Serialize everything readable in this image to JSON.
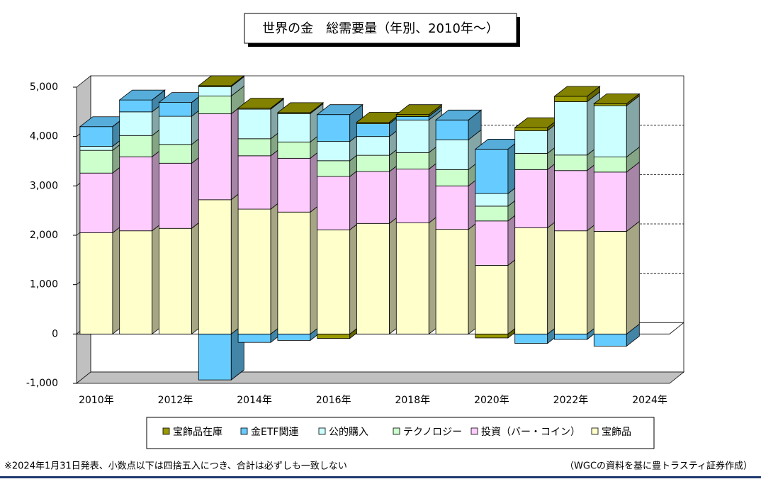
{
  "chart_data": {
    "type": "bar3d-stacked",
    "title": "世界の金　総需要量（年別、2010年～）",
    "categories": [
      "2010年",
      null,
      "2012年",
      null,
      "2014年",
      null,
      "2016年",
      null,
      "2018年",
      null,
      "2020年",
      null,
      "2022年",
      null,
      "2024年"
    ],
    "series": [
      {
        "name": "宝飾品",
        "color": "#ffffcc",
        "values": [
          2050,
          2090,
          2140,
          2720,
          2530,
          2470,
          2110,
          2240,
          2250,
          2120,
          1390,
          2150,
          2090,
          2080,
          null
        ]
      },
      {
        "name": "投資（バー・コイン）",
        "color": "#ffccff",
        "values": [
          1210,
          1500,
          1320,
          1740,
          1080,
          1090,
          1080,
          1050,
          1090,
          880,
          900,
          1180,
          1220,
          1200,
          null
        ]
      },
      {
        "name": "テクノロジー",
        "color": "#ccffcc",
        "values": [
          460,
          430,
          380,
          360,
          345,
          330,
          320,
          330,
          335,
          330,
          300,
          330,
          315,
          305,
          null
        ]
      },
      {
        "name": "公的購入",
        "color": "#ccffff",
        "values": [
          80,
          480,
          570,
          190,
          600,
          575,
          390,
          380,
          660,
          605,
          255,
          460,
          1080,
          1040,
          null
        ]
      },
      {
        "name": "金ETF関連",
        "color": "#66ccff",
        "values": [
          400,
          240,
          280,
          -930,
          -170,
          -130,
          545,
          260,
          70,
          400,
          900,
          -190,
          -110,
          -245,
          null
        ]
      },
      {
        "name": "宝飾品在庫",
        "color": "#999900",
        "values": [
          0,
          0,
          0,
          20,
          20,
          20,
          -90,
          30,
          40,
          0,
          -80,
          60,
          110,
          40,
          null
        ]
      }
    ],
    "ylim": [
      -1000,
      5000
    ],
    "yticks": [
      {
        "value": -1000,
        "label": "-1,000"
      },
      0,
      {
        "value": 1000,
        "label": "1,000"
      },
      {
        "value": 2000,
        "label": "2,000"
      },
      {
        "value": 3000,
        "label": "3,000"
      },
      {
        "value": 4000,
        "label": "4,000"
      },
      {
        "value": 5000,
        "label": "5,000"
      }
    ],
    "grid": true,
    "legend": "bottom"
  },
  "notes": {
    "left": "※2024年1月31日発表、小数点以下は四捨五入につき、合計は必ずしも一致しない",
    "right": "（WGCの資料を基に豊トラスティ証券作成）"
  }
}
